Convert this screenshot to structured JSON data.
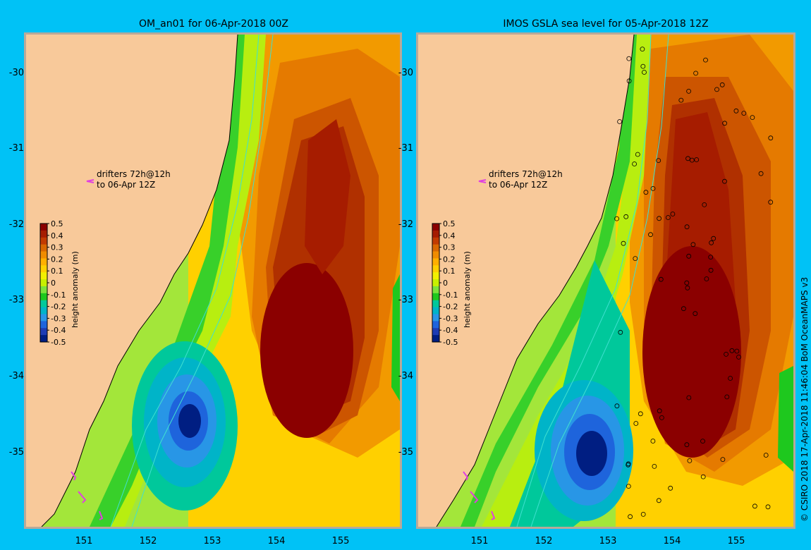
{
  "panels": [
    {
      "title": "OM_an01 for 06-Apr-2018 00Z",
      "legend_line1": "drifters 72h@12h",
      "legend_line2": "to 06-Apr 12Z"
    },
    {
      "title": "IMOS GSLA sea level  for 05-Apr-2018 12Z",
      "legend_line1": "drifters 72h@12h",
      "legend_line2": "to 06-Apr 12Z"
    }
  ],
  "lat_ticks": [
    "-30",
    "-31",
    "-32",
    "-33",
    "-34",
    "-35"
  ],
  "lon_ticks": [
    "151",
    "152",
    "153",
    "154",
    "155"
  ],
  "colorbar": {
    "label": "height anomaly (m)",
    "ticks": [
      "0.5",
      "0.4",
      "0.3",
      "0.2",
      "0.1",
      "0",
      "-0.1",
      "-0.2",
      "-0.3",
      "-0.4",
      "-0.5"
    ],
    "colors": [
      "#8b0000",
      "#a61c00",
      "#c23b00",
      "#d96800",
      "#f08c00",
      "#ffb000",
      "#ffd000",
      "#f2f000",
      "#c8f000",
      "#7be33c",
      "#1ec81e",
      "#00c89b",
      "#00b4c8",
      "#2896e6",
      "#1e64dc",
      "#1e3cb4",
      "#001e82"
    ]
  },
  "credit": "© CSIRO 2018  17-Apr-2018 11:46:04 BoM OceanMAPS v3",
  "colors": {
    "background": "#00c2f6",
    "land": "#f8c99a",
    "frame": "#b8a99a",
    "drifter": "#e040e0",
    "contour": "#40e0d0"
  }
}
